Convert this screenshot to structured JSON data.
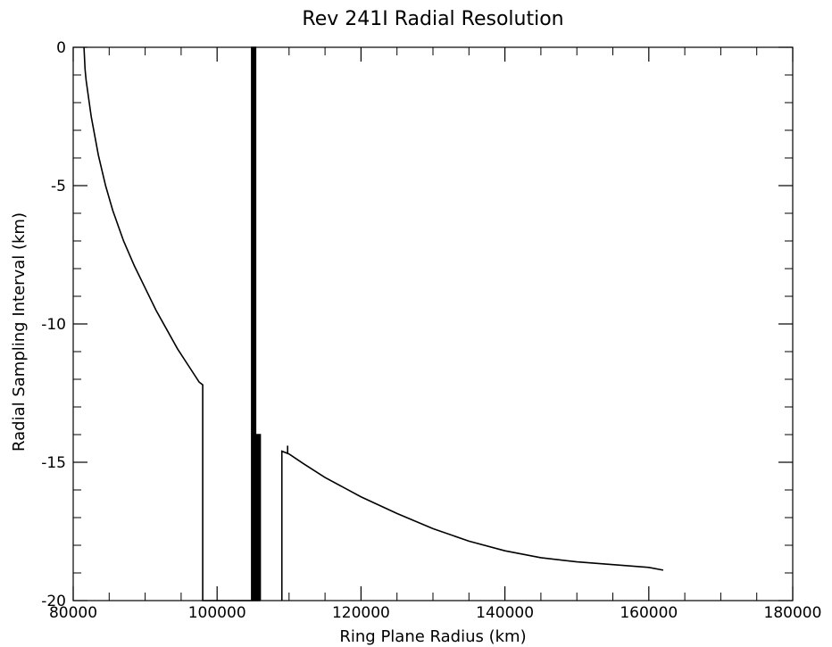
{
  "chart_data": {
    "type": "line",
    "title": "Rev 241I Radial Resolution",
    "xlabel": "Ring Plane Radius (km)",
    "ylabel": "Radial Sampling Interval (km)",
    "xlim": [
      80000,
      180000
    ],
    "ylim": [
      -20,
      0
    ],
    "x_ticks": [
      "80000",
      "100000",
      "120000",
      "140000",
      "160000",
      "180000"
    ],
    "y_ticks": [
      "0",
      "-5",
      "-10",
      "-15",
      "-20"
    ],
    "x_tick_values": [
      80000,
      100000,
      120000,
      140000,
      160000,
      180000
    ],
    "y_tick_values": [
      0,
      -5,
      -10,
      -15,
      -20
    ],
    "x_minor_step": 5000,
    "y_minor_step": 1,
    "grid": false,
    "legend": "none",
    "line_color": "#000000",
    "series": [
      {
        "values": [
          [
            81500,
            0
          ],
          [
            81650,
            -0.8
          ],
          [
            81800,
            -1.2
          ],
          [
            82500,
            -2.5
          ],
          [
            83500,
            -3.9
          ],
          [
            84500,
            -5.0
          ],
          [
            85500,
            -5.9
          ],
          [
            87000,
            -7.0
          ],
          [
            88500,
            -7.9
          ],
          [
            90000,
            -8.7
          ],
          [
            91500,
            -9.5
          ],
          [
            93000,
            -10.2
          ],
          [
            94500,
            -10.9
          ],
          [
            96000,
            -11.5
          ],
          [
            97500,
            -12.1
          ],
          [
            98000,
            -12.2
          ],
          [
            98000,
            -20
          ],
          [
            104800,
            -20
          ],
          [
            104800,
            0
          ],
          [
            104850,
            0
          ],
          [
            104850,
            -20
          ],
          [
            105000,
            -20
          ],
          [
            105000,
            0
          ],
          [
            105100,
            0
          ],
          [
            105100,
            -20
          ],
          [
            105250,
            -20
          ],
          [
            105250,
            0
          ],
          [
            105350,
            0
          ],
          [
            105350,
            -20
          ],
          [
            105500,
            -20
          ],
          [
            105500,
            -14
          ],
          [
            105600,
            -14
          ],
          [
            105600,
            -20
          ],
          [
            105700,
            -20
          ],
          [
            105700,
            -14
          ],
          [
            105800,
            -14
          ],
          [
            105800,
            -20
          ],
          [
            105900,
            -20
          ],
          [
            105900,
            -14
          ],
          [
            106000,
            -14
          ],
          [
            106000,
            -20
          ]
        ]
      },
      {
        "values": [
          [
            109000,
            -20
          ],
          [
            109000,
            -14.6
          ],
          [
            110000,
            -14.7
          ],
          [
            112000,
            -15.05
          ],
          [
            115000,
            -15.55
          ],
          [
            120000,
            -16.25
          ],
          [
            125000,
            -16.85
          ],
          [
            130000,
            -17.4
          ],
          [
            135000,
            -17.85
          ],
          [
            140000,
            -18.2
          ],
          [
            145000,
            -18.45
          ],
          [
            150000,
            -18.6
          ],
          [
            155000,
            -18.7
          ],
          [
            160000,
            -18.8
          ],
          [
            162000,
            -18.9
          ]
        ]
      },
      {
        "values": [
          [
            109800,
            -14.4
          ],
          [
            109800,
            -14.7
          ]
        ]
      }
    ]
  }
}
